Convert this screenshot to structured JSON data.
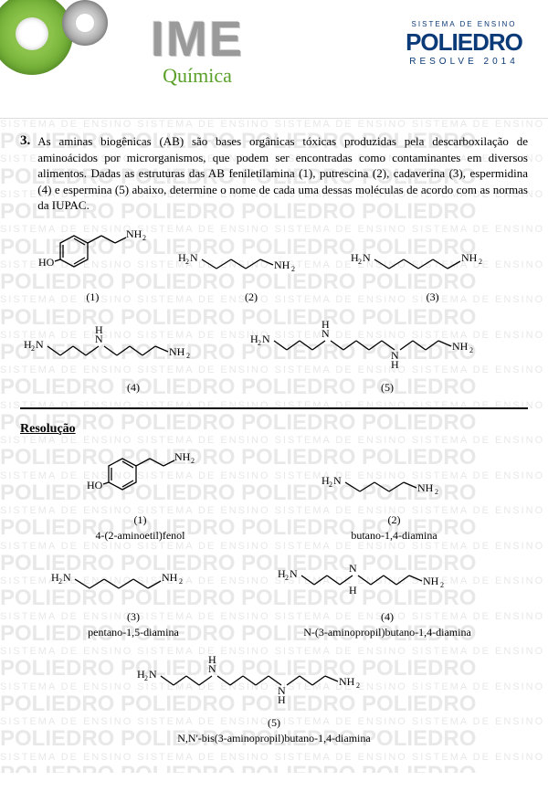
{
  "header": {
    "exam": "IME",
    "subject": "Química",
    "brand_top": "SISTEMA DE ENSINO",
    "brand_name": "POLIEDRO",
    "brand_bottom": "RESOLVE 2014"
  },
  "question": {
    "number": "3.",
    "text": "As aminas biogênicas (AB) são bases orgânicas tóxicas produzidas pela descarboxilação de aminoácidos por microrganismos, que podem ser encontradas como contaminantes em diversos alimentos. Dadas as estruturas das AB feniletilamina (1), putrescina (2), cadaverina (3), espermidina (4) e espermina (5) abaixo, determine o nome de cada uma dessas moléculas de acordo com as normas da IUPAC."
  },
  "molecules": {
    "m1": {
      "label": "(1)",
      "name": "4-(2-aminoetil)fenol"
    },
    "m2": {
      "label": "(2)",
      "name": "butano-1,4-diamina"
    },
    "m3": {
      "label": "(3)",
      "name": "pentano-1,5-diamina"
    },
    "m4": {
      "label": "(4)",
      "name": "N-(3-aminopropil)butano-1,4-diamina"
    },
    "m5": {
      "label": "(5)",
      "name": "N,N'-bis(3-aminopropil)butano-1,4-diamina"
    }
  },
  "resolution_title": "Resolução",
  "watermark": {
    "line1": "SISTEMA DE ENSINO SISTEMA DE ENSINO SISTEMA DE ENSINO SISTEMA DE ENSINO",
    "line2": "POLIEDRO POLIEDRO POLIEDRO POLIEDRO"
  }
}
